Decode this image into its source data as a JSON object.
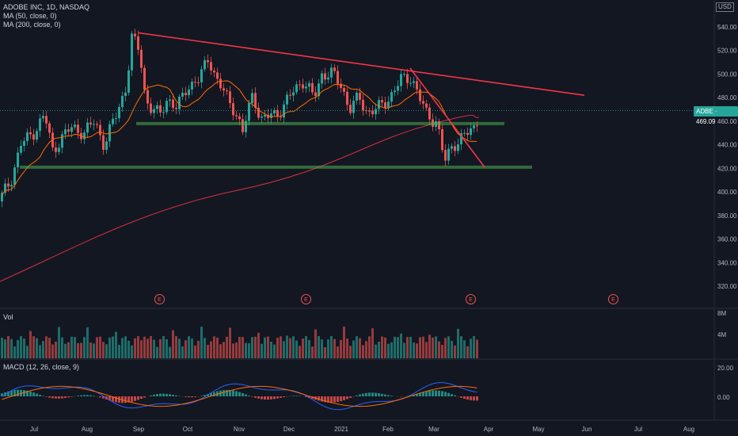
{
  "legend": {
    "title": "ADOBE INC, 1D, NASDAQ",
    "ma50": "MA (50, close, 0)",
    "ma200": "MA (200, close, 0)"
  },
  "currency": "USD",
  "price_tag": {
    "symbol": "ADBE",
    "value": "469.09"
  },
  "price_axis": [
    "540.00",
    "520.00",
    "500.00",
    "480.00",
    "460.00",
    "440.00",
    "420.00",
    "400.00",
    "380.00",
    "360.00",
    "340.00",
    "320.00"
  ],
  "vol_label": "Vol",
  "vol_axis": [
    "8M",
    "4M"
  ],
  "macd_label": "MACD (12, 26, close, 9)",
  "macd_axis": [
    "20.00",
    "0.00"
  ],
  "time_axis": [
    "Jul",
    "Aug",
    "Sep",
    "Oct",
    "Nov",
    "Dec",
    "2021",
    "Feb",
    "Mar",
    "Apr",
    "May",
    "Jun",
    "Jul",
    "Aug"
  ],
  "earnings_marker": "E",
  "colors": {
    "bg": "#131722",
    "up": "#26a69a",
    "down": "#ef5350",
    "trend": "#f23645",
    "support": "#4caf50",
    "ma50": "#ff6d00",
    "macd": "#2962ff"
  },
  "chart_data": {
    "type": "candlestick",
    "ylim": [
      310,
      560
    ],
    "support_levels": [
      457,
      421
    ],
    "trendlines": [
      {
        "from": [
          "Sep",
          535
        ],
        "to": [
          "Jun",
          482
        ]
      },
      {
        "from": [
          "Feb",
          505
        ],
        "to": [
          "Mar",
          421
        ]
      }
    ],
    "last_price": 469.09
  }
}
